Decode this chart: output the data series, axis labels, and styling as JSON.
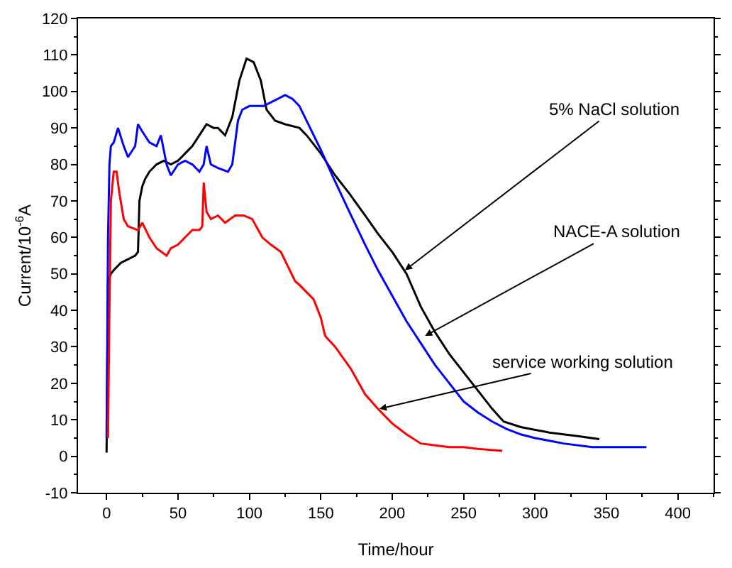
{
  "chart_data": {
    "type": "line",
    "xlabel": "Time/hour",
    "ylabel": "Current/10$^{-6}$A",
    "xlim": [
      -20,
      425
    ],
    "ylim": [
      -10,
      120
    ],
    "xticks": [
      0,
      50,
      100,
      150,
      200,
      250,
      300,
      350,
      400
    ],
    "yticks": [
      -10,
      0,
      10,
      20,
      30,
      40,
      50,
      60,
      70,
      80,
      90,
      100,
      110,
      120
    ],
    "marker": "none",
    "line_style": "solid",
    "series": [
      {
        "color": "#000000",
        "x": [
          0,
          1,
          3,
          5,
          10,
          15,
          20,
          22,
          23,
          25,
          27,
          30,
          35,
          40,
          45,
          50,
          55,
          60,
          65,
          70,
          75,
          78,
          83,
          88,
          93,
          98,
          103,
          108,
          112,
          118,
          125,
          135,
          140,
          150,
          160,
          170,
          181,
          190,
          200,
          210,
          220,
          230,
          240,
          250,
          260,
          270,
          278,
          290,
          310,
          330,
          345
        ],
        "values": [
          1,
          48,
          50,
          51,
          53,
          54,
          55,
          56,
          70,
          74,
          76,
          78,
          80,
          81,
          80,
          81,
          83,
          85,
          88,
          91,
          90,
          90,
          88,
          93,
          103,
          109,
          108,
          103,
          95,
          92,
          91,
          90,
          88,
          83,
          77,
          72,
          66,
          61,
          56,
          50,
          41,
          34,
          28,
          23,
          18,
          13,
          9.5,
          8,
          6.5,
          5.5,
          4.7
        ]
      },
      {
        "color": "#0000ff",
        "x": [
          0,
          1,
          2,
          3,
          5,
          8,
          12,
          15,
          20,
          22,
          25,
          30,
          35,
          38,
          42,
          45,
          50,
          55,
          60,
          65,
          68,
          70,
          73,
          78,
          85,
          88,
          92,
          95,
          100,
          110,
          120,
          125,
          130,
          135,
          140,
          150,
          158,
          170,
          181,
          190,
          200,
          210,
          220,
          230,
          240,
          250,
          260,
          270,
          280,
          290,
          300,
          320,
          340,
          360,
          378
        ],
        "values": [
          5,
          60,
          80,
          85,
          86,
          90,
          85,
          82,
          85,
          91,
          89,
          86,
          85,
          88,
          80,
          77,
          80,
          81,
          80,
          78,
          80,
          85,
          80,
          79,
          78,
          80,
          92,
          95,
          96,
          96,
          98,
          99,
          98,
          96,
          92,
          84,
          77,
          67,
          58,
          51,
          44,
          37,
          31,
          25,
          20,
          15,
          12,
          9.5,
          7.5,
          6,
          5,
          3.5,
          2.5,
          2.5,
          2.5
        ]
      },
      {
        "color": "#ff0000",
        "x": [
          1,
          2,
          3,
          5,
          7,
          9,
          12,
          15,
          22,
          25,
          30,
          35,
          42,
          45,
          50,
          55,
          60,
          65,
          67,
          68,
          70,
          73,
          78,
          83,
          90,
          96,
          102,
          109,
          115,
          122,
          132,
          135,
          140,
          145,
          150,
          153,
          160,
          171,
          181,
          190,
          200,
          210,
          220,
          230,
          240,
          250,
          260,
          277
        ],
        "values": [
          5,
          40,
          70,
          78,
          78,
          72,
          65,
          63,
          62,
          64,
          60,
          57,
          55,
          57,
          58,
          60,
          62,
          62,
          63,
          75,
          67,
          65,
          66,
          64,
          66,
          66,
          65,
          60,
          58,
          56,
          48,
          47,
          45,
          43,
          38,
          33,
          30,
          24,
          17,
          13,
          9,
          6,
          3.5,
          3,
          2.5,
          2.5,
          2,
          1.5
        ]
      }
    ],
    "annotations": [
      {
        "text": "5% NaCl solution",
        "x": 209,
        "y": 51
      },
      {
        "text": "NACE-A solution",
        "x": 223,
        "y": 33
      },
      {
        "text": "service working solution",
        "x": 191,
        "y": 13
      }
    ]
  }
}
